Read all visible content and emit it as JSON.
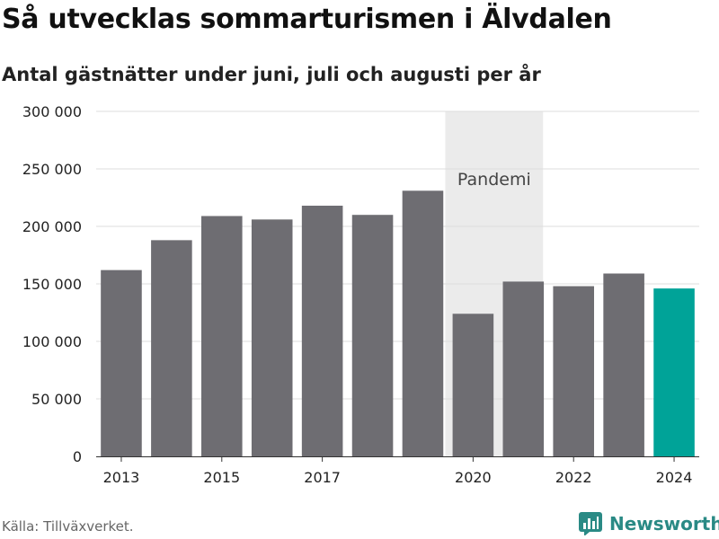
{
  "header": {
    "title": "Så utvecklas sommarturismen i Älvdalen",
    "subtitle": "Antal gästnätter under juni, juli och augusti per år"
  },
  "footer": {
    "source": "Källa: Tillväxverket.",
    "brand": "Newsworthy"
  },
  "colors": {
    "bar": "#6e6d72",
    "highlight": "#00a398",
    "band": "#ebebeb",
    "grid": "#dddddd",
    "brand": "#2a8a85"
  },
  "chart_data": {
    "type": "bar",
    "title": "Så utvecklas sommarturismen i Älvdalen",
    "subtitle": "Antal gästnätter under juni, juli och augusti per år",
    "categories": [
      "2013",
      "2014",
      "2015",
      "2016",
      "2017",
      "2018",
      "2019",
      "2020",
      "2021",
      "2022",
      "2023",
      "2024"
    ],
    "values": [
      162000,
      188000,
      209000,
      206000,
      218000,
      210000,
      231000,
      124000,
      152000,
      148000,
      159000,
      146000
    ],
    "highlight_category": "2024",
    "x_tick_labels": [
      "2013",
      "2015",
      "2017",
      "2020",
      "2022",
      "2024"
    ],
    "y_ticks": [
      0,
      50000,
      100000,
      150000,
      200000,
      250000,
      300000
    ],
    "y_tick_labels": [
      "0",
      "50 000",
      "100 000",
      "150 000",
      "200 000",
      "250 000",
      "300 000"
    ],
    "ylim": [
      0,
      300000
    ],
    "grid": true,
    "annotation": {
      "label": "Pandemi",
      "from_category": "2020",
      "to_category": "2021"
    }
  }
}
